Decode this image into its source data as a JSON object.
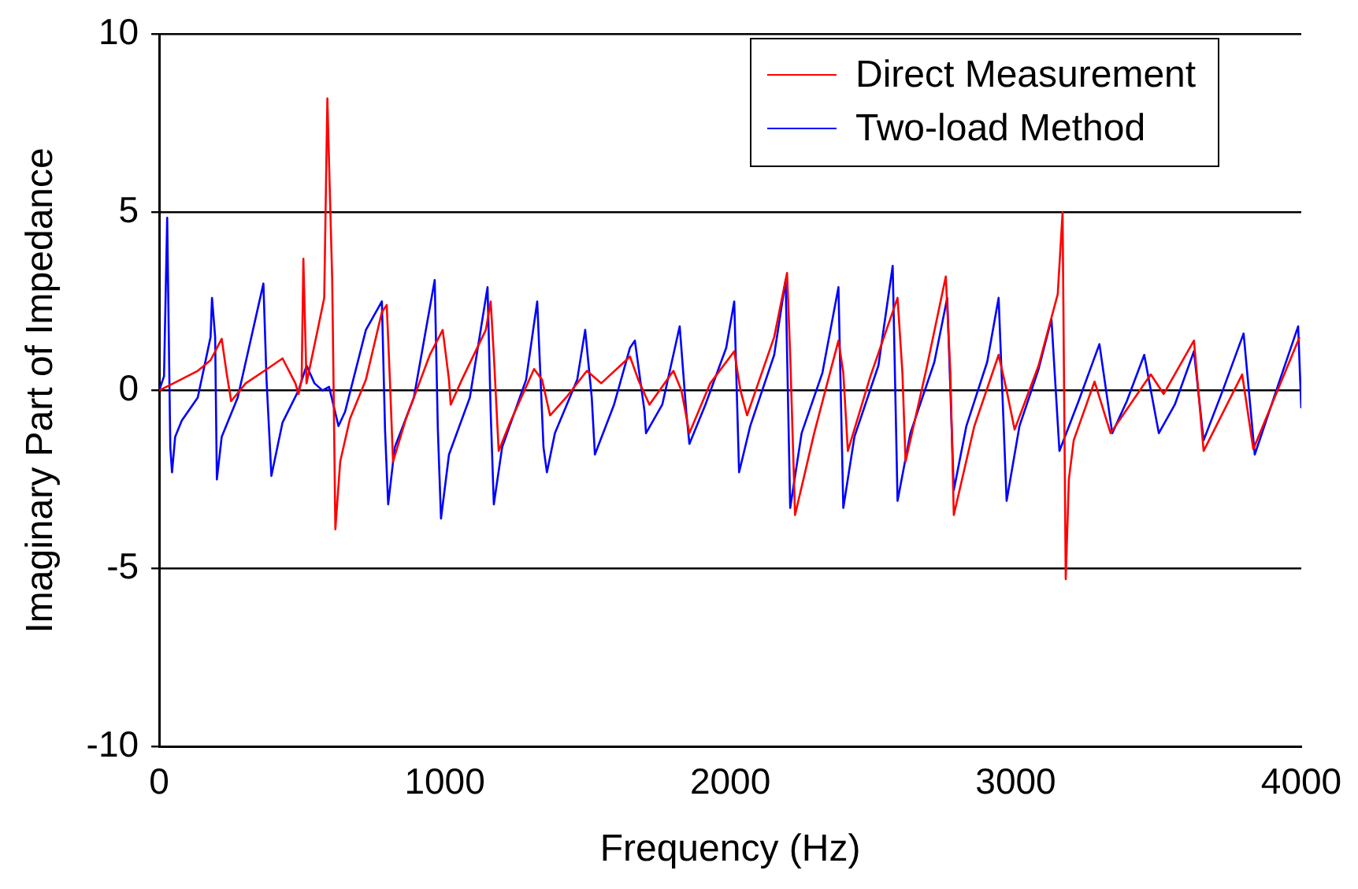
{
  "chart_data": {
    "type": "line",
    "xlabel": "Frequency (Hz)",
    "ylabel": "Imaginary Part of Impedance",
    "xlim": [
      0,
      4000
    ],
    "xticks": [
      0,
      1000,
      2000,
      3000,
      4000
    ],
    "ylim": [
      -10,
      10
    ],
    "yticks": [
      -10,
      -5,
      0,
      5,
      10
    ],
    "grid": "y",
    "legend": "top right",
    "marker": "none",
    "line_style": "solid",
    "series": [
      {
        "name": "Direct Measurement",
        "color": "#ff0000",
        "x": [
          0,
          50,
          135,
          180,
          219,
          236,
          252,
          303,
          387,
          432,
          477,
          488,
          499,
          505,
          516,
          555,
          578,
          589,
          600,
          606,
          611,
          617,
          634,
          668,
          724,
          780,
          797,
          808,
          819,
          864,
          948,
          993,
          1015,
          1021,
          1060,
          1144,
          1161,
          1172,
          1189,
          1229,
          1313,
          1341,
          1369,
          1425,
          1498,
          1548,
          1649,
          1678,
          1717,
          1801,
          1829,
          1857,
          1930,
          2014,
          2036,
          2059,
          2154,
          2199,
          2210,
          2227,
          2294,
          2379,
          2396,
          2412,
          2491,
          2586,
          2603,
          2614,
          2687,
          2755,
          2771,
          2783,
          2855,
          2940,
          2968,
          2996,
          3080,
          3147,
          3164,
          3175,
          3186,
          3203,
          3276,
          3332,
          3473,
          3518,
          3624,
          3658,
          3793,
          3832,
          3994
        ],
        "values": [
          0.0,
          0.2,
          0.55,
          0.85,
          1.45,
          0.5,
          -0.3,
          0.2,
          0.65,
          0.9,
          0.2,
          -0.1,
          0.3,
          3.7,
          0.2,
          1.7,
          2.6,
          8.2,
          4.9,
          3.1,
          0.0,
          -3.9,
          -2.0,
          -0.8,
          0.3,
          2.2,
          2.4,
          0.3,
          -2.0,
          -0.8,
          1.0,
          1.7,
          0.3,
          -0.4,
          0.3,
          1.7,
          2.5,
          1.0,
          -1.7,
          -0.9,
          0.6,
          0.3,
          -0.7,
          -0.2,
          0.55,
          0.2,
          0.95,
          0.3,
          -0.4,
          0.55,
          0.0,
          -1.2,
          0.2,
          1.1,
          0.0,
          -0.7,
          1.5,
          3.3,
          1.0,
          -3.5,
          -1.2,
          1.4,
          0.5,
          -1.7,
          0.4,
          2.6,
          0.5,
          -2.0,
          0.6,
          3.2,
          0.5,
          -3.5,
          -1.0,
          1.0,
          0.0,
          -1.1,
          0.7,
          2.7,
          5.0,
          -5.3,
          -2.5,
          -1.4,
          0.25,
          -1.2,
          0.45,
          -0.1,
          1.4,
          -1.7,
          0.45,
          -1.65,
          1.5
        ]
      },
      {
        "name": "Two-load Method",
        "color": "#0000ff",
        "x": [
          0,
          17,
          28,
          39,
          45,
          56,
          79,
          135,
          180,
          185,
          196,
          202,
          219,
          275,
          365,
          376,
          393,
          432,
          488,
          516,
          544,
          572,
          595,
          628,
          651,
          724,
          780,
          791,
          802,
          825,
          892,
          965,
          976,
          987,
          1015,
          1088,
          1150,
          1161,
          1172,
          1201,
          1285,
          1324,
          1346,
          1358,
          1386,
          1464,
          1492,
          1515,
          1526,
          1593,
          1649,
          1666,
          1700,
          1705,
          1762,
          1823,
          1846,
          1857,
          1913,
          1986,
          2014,
          2031,
          2070,
          2154,
          2194,
          2210,
          2250,
          2323,
          2379,
          2396,
          2435,
          2519,
          2569,
          2586,
          2631,
          2715,
          2760,
          2783,
          2827,
          2900,
          2940,
          2968,
          3013,
          3080,
          3125,
          3153,
          3220,
          3293,
          3338,
          3389,
          3450,
          3501,
          3557,
          3624,
          3658,
          3725,
          3798,
          3837,
          3921,
          3989,
          4000
        ],
        "values": [
          0.0,
          0.4,
          4.85,
          -1.6,
          -2.3,
          -1.3,
          -0.85,
          -0.2,
          1.5,
          2.6,
          1.5,
          -2.5,
          -1.3,
          -0.2,
          3.0,
          0.3,
          -2.4,
          -0.9,
          0.0,
          0.7,
          0.2,
          0.0,
          0.1,
          -1.0,
          -0.6,
          1.7,
          2.5,
          -1.1,
          -3.2,
          -1.6,
          -0.2,
          3.1,
          -1.1,
          -3.6,
          -1.8,
          -0.2,
          2.9,
          -0.6,
          -3.2,
          -1.6,
          0.3,
          2.5,
          -1.6,
          -2.3,
          -1.2,
          0.3,
          1.7,
          -0.2,
          -1.8,
          -0.4,
          1.2,
          1.4,
          -0.6,
          -1.2,
          -0.4,
          1.8,
          -0.6,
          -1.5,
          -0.4,
          1.2,
          2.5,
          -2.3,
          -1.0,
          1.0,
          3.1,
          -3.3,
          -1.2,
          0.5,
          2.9,
          -3.3,
          -1.3,
          0.7,
          3.5,
          -3.1,
          -1.2,
          0.8,
          2.6,
          -2.8,
          -1.0,
          0.8,
          2.6,
          -3.1,
          -1.0,
          0.6,
          2.0,
          -1.7,
          -0.3,
          1.3,
          -1.2,
          -0.3,
          1.0,
          -1.2,
          -0.4,
          1.1,
          -1.4,
          0.0,
          1.6,
          -1.8,
          0.2,
          1.8,
          -0.5
        ]
      }
    ]
  }
}
